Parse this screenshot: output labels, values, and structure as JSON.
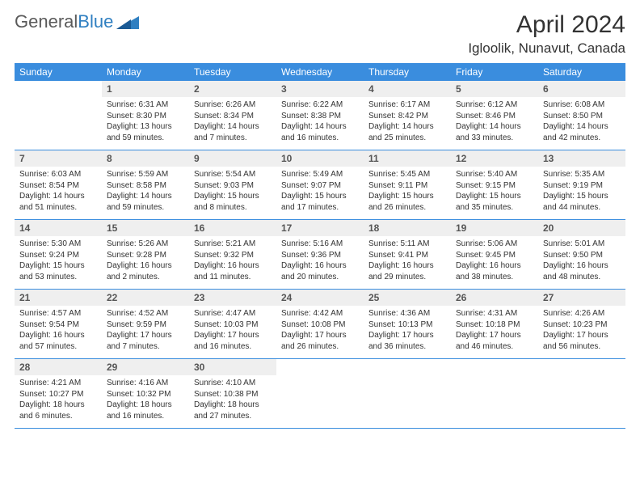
{
  "brand": {
    "general": "General",
    "blue": "Blue",
    "accent_color": "#2f7fc1"
  },
  "title": "April 2024",
  "location": "Igloolik, Nunavut, Canada",
  "header_bg": "#3a8dde",
  "daynum_bg": "#efefef",
  "weekdays": [
    "Sunday",
    "Monday",
    "Tuesday",
    "Wednesday",
    "Thursday",
    "Friday",
    "Saturday"
  ],
  "weeks": [
    {
      "nums": [
        "",
        "1",
        "2",
        "3",
        "4",
        "5",
        "6"
      ],
      "cells": [
        {
          "sr": "",
          "ss": "",
          "dl1": "",
          "dl2": ""
        },
        {
          "sr": "Sunrise: 6:31 AM",
          "ss": "Sunset: 8:30 PM",
          "dl1": "Daylight: 13 hours",
          "dl2": "and 59 minutes."
        },
        {
          "sr": "Sunrise: 6:26 AM",
          "ss": "Sunset: 8:34 PM",
          "dl1": "Daylight: 14 hours",
          "dl2": "and 7 minutes."
        },
        {
          "sr": "Sunrise: 6:22 AM",
          "ss": "Sunset: 8:38 PM",
          "dl1": "Daylight: 14 hours",
          "dl2": "and 16 minutes."
        },
        {
          "sr": "Sunrise: 6:17 AM",
          "ss": "Sunset: 8:42 PM",
          "dl1": "Daylight: 14 hours",
          "dl2": "and 25 minutes."
        },
        {
          "sr": "Sunrise: 6:12 AM",
          "ss": "Sunset: 8:46 PM",
          "dl1": "Daylight: 14 hours",
          "dl2": "and 33 minutes."
        },
        {
          "sr": "Sunrise: 6:08 AM",
          "ss": "Sunset: 8:50 PM",
          "dl1": "Daylight: 14 hours",
          "dl2": "and 42 minutes."
        }
      ]
    },
    {
      "nums": [
        "7",
        "8",
        "9",
        "10",
        "11",
        "12",
        "13"
      ],
      "cells": [
        {
          "sr": "Sunrise: 6:03 AM",
          "ss": "Sunset: 8:54 PM",
          "dl1": "Daylight: 14 hours",
          "dl2": "and 51 minutes."
        },
        {
          "sr": "Sunrise: 5:59 AM",
          "ss": "Sunset: 8:58 PM",
          "dl1": "Daylight: 14 hours",
          "dl2": "and 59 minutes."
        },
        {
          "sr": "Sunrise: 5:54 AM",
          "ss": "Sunset: 9:03 PM",
          "dl1": "Daylight: 15 hours",
          "dl2": "and 8 minutes."
        },
        {
          "sr": "Sunrise: 5:49 AM",
          "ss": "Sunset: 9:07 PM",
          "dl1": "Daylight: 15 hours",
          "dl2": "and 17 minutes."
        },
        {
          "sr": "Sunrise: 5:45 AM",
          "ss": "Sunset: 9:11 PM",
          "dl1": "Daylight: 15 hours",
          "dl2": "and 26 minutes."
        },
        {
          "sr": "Sunrise: 5:40 AM",
          "ss": "Sunset: 9:15 PM",
          "dl1": "Daylight: 15 hours",
          "dl2": "and 35 minutes."
        },
        {
          "sr": "Sunrise: 5:35 AM",
          "ss": "Sunset: 9:19 PM",
          "dl1": "Daylight: 15 hours",
          "dl2": "and 44 minutes."
        }
      ]
    },
    {
      "nums": [
        "14",
        "15",
        "16",
        "17",
        "18",
        "19",
        "20"
      ],
      "cells": [
        {
          "sr": "Sunrise: 5:30 AM",
          "ss": "Sunset: 9:24 PM",
          "dl1": "Daylight: 15 hours",
          "dl2": "and 53 minutes."
        },
        {
          "sr": "Sunrise: 5:26 AM",
          "ss": "Sunset: 9:28 PM",
          "dl1": "Daylight: 16 hours",
          "dl2": "and 2 minutes."
        },
        {
          "sr": "Sunrise: 5:21 AM",
          "ss": "Sunset: 9:32 PM",
          "dl1": "Daylight: 16 hours",
          "dl2": "and 11 minutes."
        },
        {
          "sr": "Sunrise: 5:16 AM",
          "ss": "Sunset: 9:36 PM",
          "dl1": "Daylight: 16 hours",
          "dl2": "and 20 minutes."
        },
        {
          "sr": "Sunrise: 5:11 AM",
          "ss": "Sunset: 9:41 PM",
          "dl1": "Daylight: 16 hours",
          "dl2": "and 29 minutes."
        },
        {
          "sr": "Sunrise: 5:06 AM",
          "ss": "Sunset: 9:45 PM",
          "dl1": "Daylight: 16 hours",
          "dl2": "and 38 minutes."
        },
        {
          "sr": "Sunrise: 5:01 AM",
          "ss": "Sunset: 9:50 PM",
          "dl1": "Daylight: 16 hours",
          "dl2": "and 48 minutes."
        }
      ]
    },
    {
      "nums": [
        "21",
        "22",
        "23",
        "24",
        "25",
        "26",
        "27"
      ],
      "cells": [
        {
          "sr": "Sunrise: 4:57 AM",
          "ss": "Sunset: 9:54 PM",
          "dl1": "Daylight: 16 hours",
          "dl2": "and 57 minutes."
        },
        {
          "sr": "Sunrise: 4:52 AM",
          "ss": "Sunset: 9:59 PM",
          "dl1": "Daylight: 17 hours",
          "dl2": "and 7 minutes."
        },
        {
          "sr": "Sunrise: 4:47 AM",
          "ss": "Sunset: 10:03 PM",
          "dl1": "Daylight: 17 hours",
          "dl2": "and 16 minutes."
        },
        {
          "sr": "Sunrise: 4:42 AM",
          "ss": "Sunset: 10:08 PM",
          "dl1": "Daylight: 17 hours",
          "dl2": "and 26 minutes."
        },
        {
          "sr": "Sunrise: 4:36 AM",
          "ss": "Sunset: 10:13 PM",
          "dl1": "Daylight: 17 hours",
          "dl2": "and 36 minutes."
        },
        {
          "sr": "Sunrise: 4:31 AM",
          "ss": "Sunset: 10:18 PM",
          "dl1": "Daylight: 17 hours",
          "dl2": "and 46 minutes."
        },
        {
          "sr": "Sunrise: 4:26 AM",
          "ss": "Sunset: 10:23 PM",
          "dl1": "Daylight: 17 hours",
          "dl2": "and 56 minutes."
        }
      ]
    },
    {
      "nums": [
        "28",
        "29",
        "30",
        "",
        "",
        "",
        ""
      ],
      "cells": [
        {
          "sr": "Sunrise: 4:21 AM",
          "ss": "Sunset: 10:27 PM",
          "dl1": "Daylight: 18 hours",
          "dl2": "and 6 minutes."
        },
        {
          "sr": "Sunrise: 4:16 AM",
          "ss": "Sunset: 10:32 PM",
          "dl1": "Daylight: 18 hours",
          "dl2": "and 16 minutes."
        },
        {
          "sr": "Sunrise: 4:10 AM",
          "ss": "Sunset: 10:38 PM",
          "dl1": "Daylight: 18 hours",
          "dl2": "and 27 minutes."
        },
        {
          "sr": "",
          "ss": "",
          "dl1": "",
          "dl2": ""
        },
        {
          "sr": "",
          "ss": "",
          "dl1": "",
          "dl2": ""
        },
        {
          "sr": "",
          "ss": "",
          "dl1": "",
          "dl2": ""
        },
        {
          "sr": "",
          "ss": "",
          "dl1": "",
          "dl2": ""
        }
      ]
    }
  ]
}
